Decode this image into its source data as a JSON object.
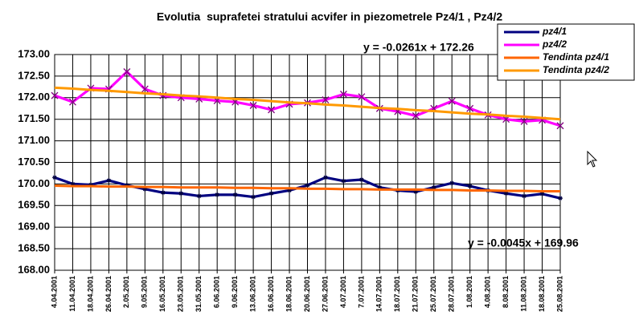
{
  "chart_data": {
    "type": "line",
    "title": "Evolutia  suprafetei stratului acvifer in piezometrele Pz4/1 , Pz4/2",
    "categories": [
      "4.04.2001",
      "11.04.2001",
      "18.04.2001",
      "26.04.2001",
      "2.05.2001",
      "9.05.2001",
      "16.05.2001",
      "23.05.2001",
      "31.05.2001",
      "6.06.2001",
      "9.06.2001",
      "13.06.2001",
      "16.06.2001",
      "18.06.2001",
      "20.06.2001",
      "27.06.2001",
      "4.07.2001",
      "7.07.2001",
      "14.07.2001",
      "18.07.2001",
      "21.07.2001",
      "25.07.2001",
      "28.07.2001",
      "1.08.2001",
      "4.08.2001",
      "8.08.2001",
      "11.08.2001",
      "18.08.2001",
      "25.08.2001"
    ],
    "series": [
      {
        "name": "pz4/1",
        "color": "#000080",
        "marker": "star",
        "values": [
          170.15,
          170.0,
          169.98,
          170.08,
          169.97,
          169.88,
          169.8,
          169.78,
          169.72,
          169.75,
          169.75,
          169.7,
          169.78,
          169.85,
          169.97,
          170.15,
          170.07,
          170.1,
          169.92,
          169.85,
          169.82,
          169.92,
          170.02,
          169.95,
          169.85,
          169.78,
          169.72,
          169.77,
          169.67
        ]
      },
      {
        "name": "pz4/2",
        "color": "#ff00ff",
        "marker": "x",
        "values": [
          172.05,
          171.9,
          172.22,
          172.2,
          172.6,
          172.2,
          172.05,
          172.0,
          171.97,
          171.93,
          171.9,
          171.82,
          171.72,
          171.85,
          171.88,
          171.95,
          172.08,
          172.02,
          171.75,
          171.68,
          171.58,
          171.75,
          171.92,
          171.75,
          171.6,
          171.5,
          171.45,
          171.48,
          171.35
        ]
      },
      {
        "name": "Tendinta pz4/1",
        "color": "#ff6600",
        "marker": "none",
        "values": [
          169.96,
          169.95,
          169.95,
          169.94,
          169.94,
          169.93,
          169.93,
          169.92,
          169.92,
          169.92,
          169.91,
          169.91,
          169.9,
          169.9,
          169.89,
          169.89,
          169.88,
          169.88,
          169.87,
          169.87,
          169.87,
          169.86,
          169.86,
          169.85,
          169.85,
          169.84,
          169.84,
          169.83,
          169.83
        ]
      },
      {
        "name": "Tendinta pz4/2",
        "color": "#ff9900",
        "marker": "none",
        "values": [
          172.23,
          172.21,
          172.18,
          172.16,
          172.13,
          172.1,
          172.08,
          172.05,
          172.03,
          172.0,
          171.97,
          171.95,
          171.92,
          171.89,
          171.87,
          171.84,
          171.82,
          171.79,
          171.76,
          171.74,
          171.71,
          171.69,
          171.66,
          171.63,
          171.61,
          171.58,
          171.56,
          171.53,
          171.5
        ]
      }
    ],
    "annotations": [
      "y = -0.0261x + 172.26",
      "y = -0.0045x + 169.96"
    ],
    "ylim": [
      168,
      173
    ],
    "yticks": [
      {
        "value": 168,
        "label": "168.00"
      },
      {
        "value": 168.5,
        "label": "168.50"
      },
      {
        "value": 169,
        "label": "169.00"
      },
      {
        "value": 169.5,
        "label": "169.50"
      },
      {
        "value": 170,
        "label": "170.00"
      },
      {
        "value": 170.5,
        "label": "170.50"
      },
      {
        "value": 171,
        "label": "171.00"
      },
      {
        "value": 171.5,
        "label": "171.50"
      },
      {
        "value": 172,
        "label": "172.00"
      },
      {
        "value": 172.5,
        "label": "172.50"
      },
      {
        "value": 173,
        "label": "173.00"
      }
    ],
    "grid": true,
    "legend": "top-right"
  }
}
